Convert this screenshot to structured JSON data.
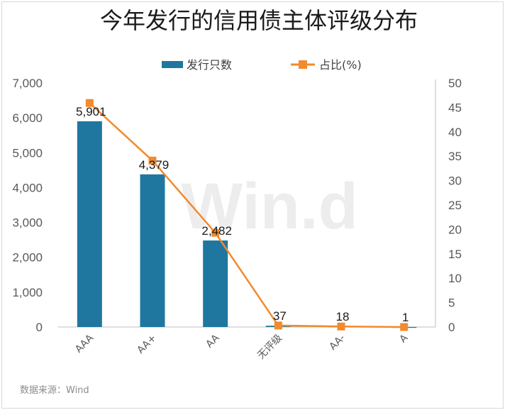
{
  "chart_data": {
    "type": "bar",
    "title": "今年发行的信用债主体评级分布",
    "categories": [
      "AAA",
      "AA+",
      "AA",
      "无评级",
      "AA-",
      "A"
    ],
    "series": [
      {
        "name": "发行只数",
        "type": "bar",
        "axis": "left",
        "color": "#1f77a0",
        "values": [
          5901,
          4379,
          2482,
          37,
          18,
          1
        ],
        "labels": [
          "5,901",
          "4,379",
          "2,482",
          "37",
          "18",
          "1"
        ]
      },
      {
        "name": "占比(%)",
        "type": "line",
        "axis": "right",
        "color": "#f28a2e",
        "values": [
          45.9,
          34.1,
          19.3,
          0.3,
          0.1,
          0.0
        ]
      }
    ],
    "y_left": {
      "range": [
        0,
        7000
      ],
      "ticks": [
        "0",
        "1,000",
        "2,000",
        "3,000",
        "4,000",
        "5,000",
        "6,000",
        "7,000"
      ]
    },
    "y_right": {
      "range": [
        0,
        50
      ],
      "ticks": [
        "0",
        "5",
        "10",
        "15",
        "20",
        "25",
        "30",
        "35",
        "40",
        "45",
        "50"
      ]
    },
    "legend_position": "top-center",
    "grid": false
  },
  "source": "数据来源：Wind",
  "watermark": "Win.d"
}
